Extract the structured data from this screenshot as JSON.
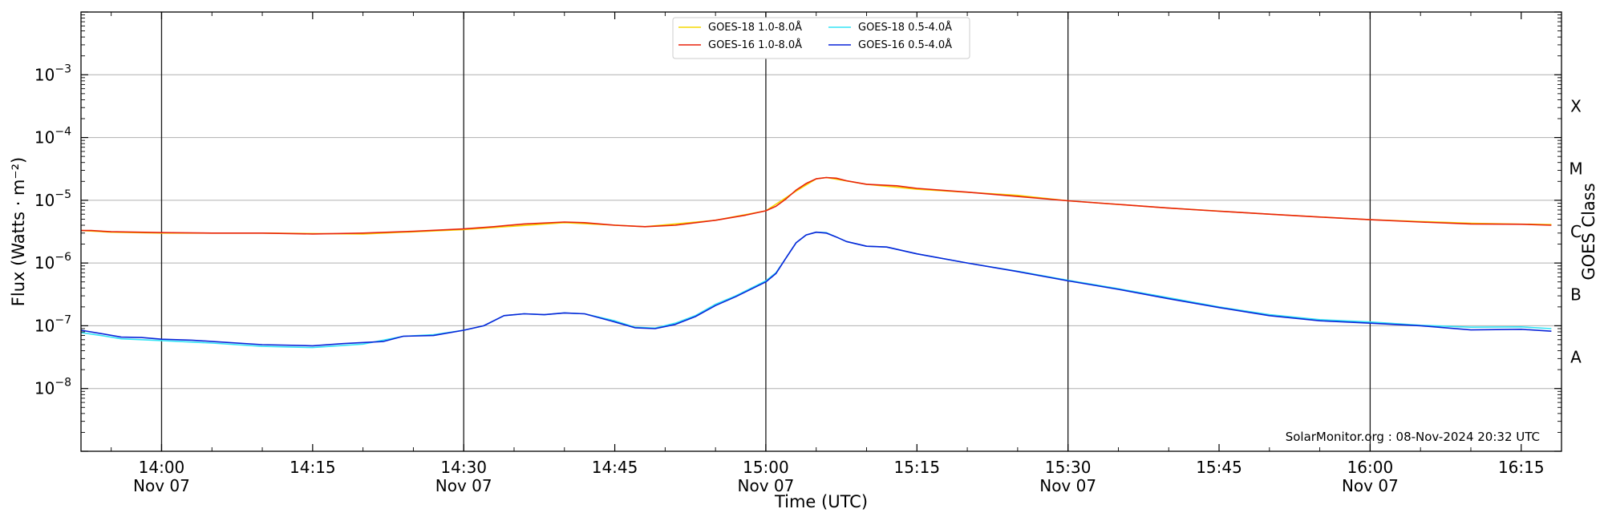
{
  "chart_data": {
    "type": "line",
    "xlabel": "Time (UTC)",
    "ylabel": "Flux (Watts · m⁻²)",
    "y2label": "GOES Class",
    "yscale": "log",
    "xlim": [
      "13:52",
      "16:19"
    ],
    "ylim": [
      1e-09,
      0.01
    ],
    "grid": "horizontal",
    "legend_position": "top-center",
    "x_ticks": [
      {
        "t": "14:00",
        "label": "14:00",
        "date": "Nov 07"
      },
      {
        "t": "14:15",
        "label": "14:15",
        "date": ""
      },
      {
        "t": "14:30",
        "label": "14:30",
        "date": "Nov 07"
      },
      {
        "t": "14:45",
        "label": "14:45",
        "date": ""
      },
      {
        "t": "15:00",
        "label": "15:00",
        "date": "Nov 07"
      },
      {
        "t": "15:15",
        "label": "15:15",
        "date": ""
      },
      {
        "t": "15:30",
        "label": "15:30",
        "date": "Nov 07"
      },
      {
        "t": "15:45",
        "label": "15:45",
        "date": ""
      },
      {
        "t": "16:00",
        "label": "16:00",
        "date": "Nov 07"
      },
      {
        "t": "16:15",
        "label": "16:15",
        "date": ""
      }
    ],
    "vlines": [
      "14:00",
      "14:30",
      "15:00",
      "15:30",
      "16:00"
    ],
    "y_ticks": [
      {
        "exp": -8,
        "base": "10",
        "sup": "−8"
      },
      {
        "exp": -7,
        "base": "10",
        "sup": "−7"
      },
      {
        "exp": -6,
        "base": "10",
        "sup": "−6"
      },
      {
        "exp": -5,
        "base": "10",
        "sup": "−5"
      },
      {
        "exp": -4,
        "base": "10",
        "sup": "−4"
      },
      {
        "exp": -3,
        "base": "10",
        "sup": "−3"
      }
    ],
    "goes_classes": [
      {
        "label": "A",
        "exp": -7.5
      },
      {
        "label": "B",
        "exp": -6.5
      },
      {
        "label": "C",
        "exp": -5.5
      },
      {
        "label": "M",
        "exp": -4.5
      },
      {
        "label": "X",
        "exp": -3.5
      }
    ],
    "series": [
      {
        "name": "GOES-18 1.0-8.0Å",
        "color": "#f5d800",
        "legend_order": 0,
        "points": [
          [
            "13:52",
            3.3e-06
          ],
          [
            "13:55",
            3.1e-06
          ],
          [
            "14:00",
            3e-06
          ],
          [
            "14:10",
            3e-06
          ],
          [
            "14:20",
            2.9e-06
          ],
          [
            "14:30",
            3.4e-06
          ],
          [
            "14:40",
            4.4e-06
          ],
          [
            "14:48",
            3.8e-06
          ],
          [
            "14:55",
            4.8e-06
          ],
          [
            "15:00",
            6.8e-06
          ],
          [
            "15:03",
            1.4e-05
          ],
          [
            "15:05",
            2.2e-05
          ],
          [
            "15:06",
            2.3e-05
          ],
          [
            "15:10",
            1.8e-05
          ],
          [
            "15:15",
            1.5e-05
          ],
          [
            "15:25",
            1.2e-05
          ],
          [
            "15:30",
            9.8e-06
          ],
          [
            "15:40",
            7.5e-06
          ],
          [
            "15:50",
            6e-06
          ],
          [
            "16:00",
            4.9e-06
          ],
          [
            "16:10",
            4.3e-06
          ],
          [
            "16:18",
            4.1e-06
          ]
        ]
      },
      {
        "name": "GOES-16 1.0-8.0Å",
        "color": "#e8220c",
        "legend_order": 1,
        "points": [
          [
            "13:52",
            3.3e-06
          ],
          [
            "13:53",
            3.3e-06
          ],
          [
            "13:55",
            3.15e-06
          ],
          [
            "14:00",
            3.05e-06
          ],
          [
            "14:05",
            3e-06
          ],
          [
            "14:10",
            3e-06
          ],
          [
            "14:15",
            2.9e-06
          ],
          [
            "14:20",
            3e-06
          ],
          [
            "14:25",
            3.2e-06
          ],
          [
            "14:30",
            3.5e-06
          ],
          [
            "14:33",
            3.8e-06
          ],
          [
            "14:36",
            4.2e-06
          ],
          [
            "14:40",
            4.5e-06
          ],
          [
            "14:42",
            4.4e-06
          ],
          [
            "14:45",
            4e-06
          ],
          [
            "14:48",
            3.8e-06
          ],
          [
            "14:51",
            4e-06
          ],
          [
            "14:55",
            4.8e-06
          ],
          [
            "14:58",
            5.8e-06
          ],
          [
            "15:00",
            6.8e-06
          ],
          [
            "15:01",
            8e-06
          ],
          [
            "15:02",
            1.05e-05
          ],
          [
            "15:03",
            1.45e-05
          ],
          [
            "15:04",
            1.85e-05
          ],
          [
            "15:05",
            2.2e-05
          ],
          [
            "15:06",
            2.3e-05
          ],
          [
            "15:07",
            2.25e-05
          ],
          [
            "15:08",
            2.05e-05
          ],
          [
            "15:10",
            1.8e-05
          ],
          [
            "15:13",
            1.7e-05
          ],
          [
            "15:15",
            1.55e-05
          ],
          [
            "15:20",
            1.35e-05
          ],
          [
            "15:25",
            1.15e-05
          ],
          [
            "15:30",
            9.8e-06
          ],
          [
            "15:35",
            8.6e-06
          ],
          [
            "15:40",
            7.5e-06
          ],
          [
            "15:45",
            6.7e-06
          ],
          [
            "15:50",
            6e-06
          ],
          [
            "15:55",
            5.4e-06
          ],
          [
            "16:00",
            4.9e-06
          ],
          [
            "16:05",
            4.5e-06
          ],
          [
            "16:10",
            4.2e-06
          ],
          [
            "16:15",
            4.15e-06
          ],
          [
            "16:18",
            4e-06
          ]
        ]
      },
      {
        "name": "GOES-18 0.5-4.0Å",
        "color": "#33e4f5",
        "legend_order": 2,
        "points": [
          [
            "13:52",
            7.8e-08
          ],
          [
            "13:54",
            7e-08
          ],
          [
            "13:56",
            6.2e-08
          ],
          [
            "14:00",
            5.8e-08
          ],
          [
            "14:05",
            5.3e-08
          ],
          [
            "14:10",
            4.7e-08
          ],
          [
            "14:15",
            4.5e-08
          ],
          [
            "14:20",
            5.1e-08
          ],
          [
            "14:24",
            6.8e-08
          ],
          [
            "14:27",
            7.2e-08
          ],
          [
            "14:30",
            8.5e-08
          ],
          [
            "14:32",
            1e-07
          ],
          [
            "14:34",
            1.45e-07
          ],
          [
            "14:36",
            1.55e-07
          ],
          [
            "14:38",
            1.5e-07
          ],
          [
            "14:40",
            1.6e-07
          ],
          [
            "14:42",
            1.55e-07
          ],
          [
            "14:45",
            1.2e-07
          ],
          [
            "14:47",
            9.5e-08
          ],
          [
            "14:49",
            9.2e-08
          ],
          [
            "14:51",
            1.1e-07
          ],
          [
            "14:53",
            1.45e-07
          ],
          [
            "14:55",
            2.2e-07
          ],
          [
            "14:57",
            3e-07
          ],
          [
            "15:00",
            5.2e-07
          ],
          [
            "15:01",
            7e-07
          ],
          [
            "15:02",
            1.2e-06
          ],
          [
            "15:03",
            2.1e-06
          ],
          [
            "15:04",
            2.8e-06
          ],
          [
            "15:05",
            3.1e-06
          ],
          [
            "15:06",
            3.05e-06
          ],
          [
            "15:07",
            2.6e-06
          ],
          [
            "15:08",
            2.2e-06
          ],
          [
            "15:10",
            1.85e-06
          ],
          [
            "15:12",
            1.8e-06
          ],
          [
            "15:15",
            1.4e-06
          ],
          [
            "15:20",
            1e-06
          ],
          [
            "15:25",
            7.4e-07
          ],
          [
            "15:30",
            5.3e-07
          ],
          [
            "15:35",
            3.9e-07
          ],
          [
            "15:40",
            2.8e-07
          ],
          [
            "15:45",
            2e-07
          ],
          [
            "15:50",
            1.5e-07
          ],
          [
            "15:55",
            1.25e-07
          ],
          [
            "16:00",
            1.15e-07
          ],
          [
            "16:05",
            1.02e-07
          ],
          [
            "16:10",
            9.5e-08
          ],
          [
            "16:15",
            9.6e-08
          ],
          [
            "16:18",
            9e-08
          ]
        ]
      },
      {
        "name": "GOES-16 0.5-4.0Å",
        "color": "#0a24d8",
        "legend_order": 3,
        "points": [
          [
            "13:52",
            8.5e-08
          ],
          [
            "13:54",
            7.5e-08
          ],
          [
            "13:56",
            6.6e-08
          ],
          [
            "13:58",
            6.5e-08
          ],
          [
            "14:00",
            6.1e-08
          ],
          [
            "14:03",
            5.9e-08
          ],
          [
            "14:06",
            5.5e-08
          ],
          [
            "14:10",
            5e-08
          ],
          [
            "14:15",
            4.8e-08
          ],
          [
            "14:18",
            5.2e-08
          ],
          [
            "14:22",
            5.6e-08
          ],
          [
            "14:24",
            6.8e-08
          ],
          [
            "14:27",
            7e-08
          ],
          [
            "14:30",
            8.5e-08
          ],
          [
            "14:32",
            1e-07
          ],
          [
            "14:34",
            1.45e-07
          ],
          [
            "14:36",
            1.55e-07
          ],
          [
            "14:38",
            1.5e-07
          ],
          [
            "14:40",
            1.6e-07
          ],
          [
            "14:42",
            1.55e-07
          ],
          [
            "14:45",
            1.15e-07
          ],
          [
            "14:47",
            9.3e-08
          ],
          [
            "14:49",
            9e-08
          ],
          [
            "14:51",
            1.05e-07
          ],
          [
            "14:53",
            1.4e-07
          ],
          [
            "14:55",
            2.1e-07
          ],
          [
            "14:57",
            2.9e-07
          ],
          [
            "15:00",
            5e-07
          ],
          [
            "15:01",
            6.8e-07
          ],
          [
            "15:02",
            1.2e-06
          ],
          [
            "15:03",
            2.1e-06
          ],
          [
            "15:04",
            2.8e-06
          ],
          [
            "15:05",
            3.1e-06
          ],
          [
            "15:06",
            3e-06
          ],
          [
            "15:07",
            2.6e-06
          ],
          [
            "15:08",
            2.2e-06
          ],
          [
            "15:10",
            1.85e-06
          ],
          [
            "15:12",
            1.8e-06
          ],
          [
            "15:15",
            1.4e-06
          ],
          [
            "15:20",
            1e-06
          ],
          [
            "15:25",
            7.3e-07
          ],
          [
            "15:30",
            5.2e-07
          ],
          [
            "15:35",
            3.8e-07
          ],
          [
            "15:40",
            2.7e-07
          ],
          [
            "15:45",
            1.95e-07
          ],
          [
            "15:50",
            1.45e-07
          ],
          [
            "15:55",
            1.2e-07
          ],
          [
            "16:00",
            1.1e-07
          ],
          [
            "16:05",
            1e-07
          ],
          [
            "16:10",
            8.6e-08
          ],
          [
            "16:15",
            8.8e-08
          ],
          [
            "16:18",
            8.2e-08
          ]
        ]
      }
    ]
  },
  "credit": "SolarMonitor.org : 08-Nov-2024 20:32 UTC"
}
